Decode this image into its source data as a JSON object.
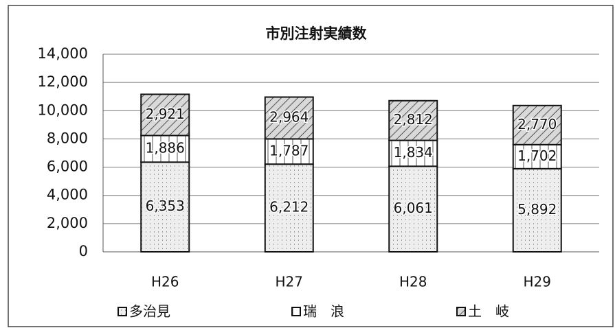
{
  "chart_data": {
    "type": "stacked_bar",
    "title": "市別注射実績数",
    "categories": [
      "H26",
      "H27",
      "H28",
      "H29"
    ],
    "series": [
      {
        "name": "多治見",
        "color": "#eeeeee",
        "values": [
          6353,
          6212,
          6061,
          5892
        ],
        "value_labels": [
          "6,353",
          "6,212",
          "6,061",
          "5,892"
        ]
      },
      {
        "name": "瑞　浪",
        "color": "#ffffff",
        "values": [
          1886,
          1787,
          1834,
          1702
        ],
        "value_labels": [
          "1,886",
          "1,787",
          "1,834",
          "1,702"
        ]
      },
      {
        "name": "土　岐",
        "color": "#d9d9d9",
        "values": [
          2921,
          2964,
          2812,
          2770
        ],
        "value_labels": [
          "2,921",
          "2,964",
          "2,812",
          "2,770"
        ]
      }
    ],
    "ylim": [
      0,
      14000
    ],
    "yticks": [
      0,
      {
        "value": 2000,
        "label": "2,000"
      },
      {
        "value": 4000,
        "label": "4,000"
      },
      {
        "value": 6000,
        "label": "6,000"
      },
      {
        "value": 8000,
        "label": "8,000"
      },
      {
        "value": 10000,
        "label": "10,000"
      },
      {
        "value": 12000,
        "label": "12,000"
      },
      {
        "value": 14000,
        "label": "14,000"
      }
    ],
    "grid": true
  }
}
